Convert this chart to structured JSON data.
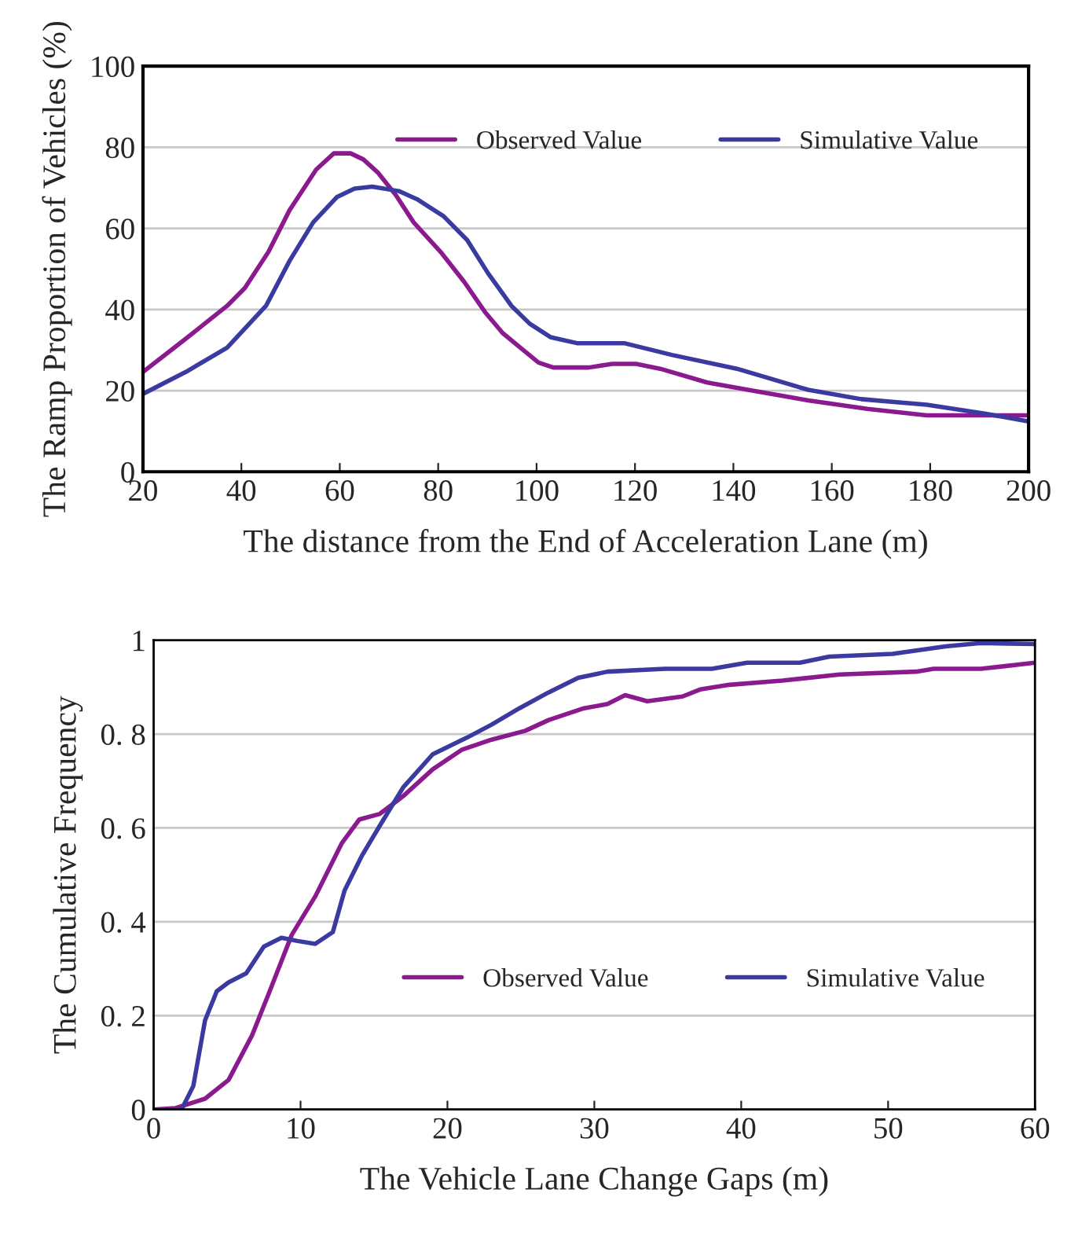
{
  "chart_data": [
    {
      "type": "line",
      "xlabel": "The distance from the End of Acceleration Lane (m)",
      "ylabel": "The Ramp Proportion of Vehicles (%)",
      "xlim": [
        20,
        200
      ],
      "xticks": [
        20,
        40,
        60,
        80,
        100,
        120,
        140,
        160,
        180,
        200
      ],
      "ylim": [
        0,
        100
      ],
      "yticks": [
        0,
        20,
        40,
        60,
        80,
        100
      ],
      "grid": "y",
      "legend": "top right",
      "series": [
        {
          "name": "Observed Value",
          "color": "#8b1a8f",
          "x": [
            20,
            28.7,
            37.1,
            40.7,
            45.5,
            49.8,
            55.2,
            58.8,
            62.2,
            64.8,
            67.8,
            71.4,
            75,
            80.5,
            85.3,
            89.5,
            93.1,
            96.7,
            100.4,
            103.4,
            110.6,
            115.4,
            120.2,
            125.1,
            134.7,
            144.3,
            155.2,
            167.2,
            179.3,
            191.3,
            200
          ],
          "values": [
            24.6,
            32.8,
            40.9,
            45.3,
            54.2,
            64.5,
            74.5,
            78.5,
            78.5,
            77,
            73.7,
            68.2,
            61.5,
            54.2,
            46.8,
            39.4,
            34.2,
            30.6,
            26.9,
            25.7,
            25.7,
            26.6,
            26.6,
            25.4,
            22,
            19.9,
            17.6,
            15.5,
            13.9,
            13.9,
            13.9
          ]
        },
        {
          "name": "Simulative Value",
          "color": "#3a3aa0",
          "x": [
            20,
            28.7,
            37.1,
            45,
            49.8,
            54.6,
            59.4,
            63,
            66.6,
            72,
            75.7,
            81.1,
            85.9,
            90.1,
            94.9,
            98.6,
            102.8,
            108.2,
            117.8,
            127.5,
            140.7,
            155.2,
            166,
            179.3,
            191.3,
            200
          ],
          "values": [
            19.2,
            24.6,
            30.6,
            40.9,
            52,
            61.5,
            67.7,
            69.8,
            70.3,
            69.2,
            67.2,
            63,
            57.1,
            49,
            40.9,
            36.5,
            33.2,
            31.7,
            31.7,
            28.8,
            25.4,
            20.2,
            17.9,
            16.5,
            14.3,
            12.4
          ]
        }
      ]
    },
    {
      "type": "line",
      "xlabel": "The Vehicle Lane Change Gaps (m)",
      "ylabel": "The Cumulative Frequency",
      "xlim": [
        0,
        60
      ],
      "xticks": [
        0,
        10,
        20,
        30,
        40,
        50,
        60
      ],
      "ylim": [
        0,
        1
      ],
      "yticks": [
        0,
        {
          "value": 0.2,
          "label": "0. 2"
        },
        {
          "value": 0.4,
          "label": "0. 4"
        },
        {
          "value": 0.6,
          "label": "0. 6"
        },
        {
          "value": 0.8,
          "label": "0. 8"
        },
        1
      ],
      "grid": "y",
      "legend": "bottom right",
      "series": [
        {
          "name": "Observed Value",
          "color": "#8b1a8f",
          "x": [
            0,
            1.5,
            3.5,
            5.1,
            6.7,
            7.9,
            9.4,
            11,
            12.8,
            14,
            15.4,
            17,
            19,
            21,
            23,
            25.3,
            26.9,
            29.3,
            30.9,
            32.1,
            33.6,
            36,
            37.2,
            39.2,
            42.8,
            46.7,
            51.9,
            53.1,
            56.3,
            60
          ],
          "values": [
            0,
            0.003,
            0.023,
            0.063,
            0.158,
            0.252,
            0.372,
            0.454,
            0.567,
            0.618,
            0.63,
            0.668,
            0.725,
            0.767,
            0.788,
            0.807,
            0.83,
            0.855,
            0.864,
            0.883,
            0.87,
            0.88,
            0.895,
            0.905,
            0.914,
            0.927,
            0.933,
            0.939,
            0.939,
            0.952
          ]
        },
        {
          "name": "Simulative Value",
          "color": "#3a3aa0",
          "x": [
            0,
            0.7,
            1.9,
            2.7,
            3.5,
            4.3,
            5.1,
            6.3,
            7.5,
            8.7,
            9.8,
            11,
            12.2,
            13,
            14.2,
            15.4,
            17,
            19,
            21.3,
            23,
            24.9,
            26.9,
            28.9,
            30.9,
            34.8,
            38,
            40.4,
            44,
            46,
            50.3,
            53.9,
            56.3,
            60
          ],
          "values": [
            0,
            0,
            0,
            0.05,
            0.19,
            0.252,
            0.271,
            0.29,
            0.347,
            0.366,
            0.359,
            0.353,
            0.378,
            0.467,
            0.542,
            0.605,
            0.687,
            0.757,
            0.792,
            0.82,
            0.855,
            0.889,
            0.92,
            0.933,
            0.939,
            0.939,
            0.952,
            0.952,
            0.965,
            0.971,
            0.987,
            0.994,
            0.992
          ]
        }
      ]
    }
  ]
}
